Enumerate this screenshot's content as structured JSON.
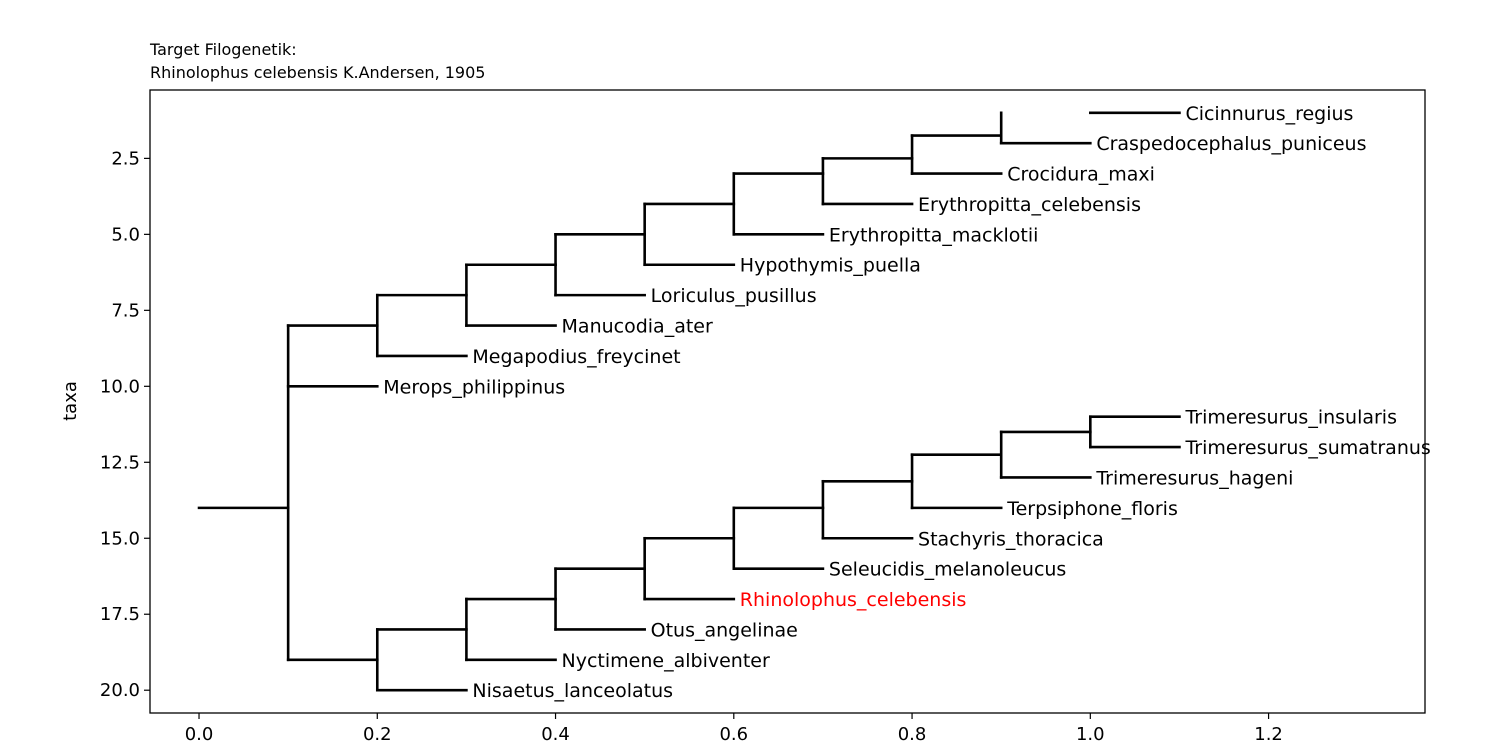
{
  "chart_data": {
    "type": "dendrogram",
    "title_lines": [
      "Target Filogenetik:",
      "Rhinolophus celebensis K.Andersen, 1905"
    ],
    "xlabel": "",
    "ylabel": "taxa",
    "xlim": [
      -0.055,
      1.3755
    ],
    "ylim": [
      20.75,
      0.25
    ],
    "xticks": [
      0.0,
      0.2,
      0.4,
      0.6,
      0.8,
      1.0,
      1.2
    ],
    "xtick_labels": [
      "0.0",
      "0.2",
      "0.4",
      "0.6",
      "0.8",
      "1.0",
      "1.2"
    ],
    "yticks": [
      2.5,
      5.0,
      7.5,
      10.0,
      12.5,
      15.0,
      17.5,
      20.0
    ],
    "ytick_labels": [
      "2.5",
      "5.0",
      "7.5",
      "10.0",
      "12.5",
      "15.0",
      "17.5",
      "20.0"
    ],
    "root": {
      "x": 0.0,
      "y": 14.0
    },
    "highlight_color": "#ff0000",
    "line_color": "#000000",
    "leaves": [
      {
        "name": "Cicinnurus_regius",
        "x": 1.1,
        "y": 1.0,
        "highlight": false
      },
      {
        "name": "Craspedocephalus_puniceus",
        "x": 1.0,
        "y": 2.0,
        "highlight": false
      },
      {
        "name": "Crocidura_maxi",
        "x": 0.9,
        "y": 3.0,
        "highlight": false
      },
      {
        "name": "Erythropitta_celebensis",
        "x": 0.8,
        "y": 4.0,
        "highlight": false
      },
      {
        "name": "Erythropitta_macklotii",
        "x": 0.7,
        "y": 5.0,
        "highlight": false
      },
      {
        "name": "Hypothymis_puella",
        "x": 0.6,
        "y": 6.0,
        "highlight": false
      },
      {
        "name": "Loriculus_pusillus",
        "x": 0.5,
        "y": 7.0,
        "highlight": false
      },
      {
        "name": "Manucodia_ater",
        "x": 0.4,
        "y": 8.0,
        "highlight": false
      },
      {
        "name": "Megapodius_freycinet",
        "x": 0.3,
        "y": 9.0,
        "highlight": false
      },
      {
        "name": "Merops_philippinus",
        "x": 0.2,
        "y": 10.0,
        "highlight": false
      },
      {
        "name": "Trimeresurus_insularis",
        "x": 1.1,
        "y": 11.0,
        "highlight": false
      },
      {
        "name": "Trimeresurus_sumatranus",
        "x": 1.1,
        "y": 12.0,
        "highlight": false
      },
      {
        "name": "Trimeresurus_hageni",
        "x": 1.0,
        "y": 13.0,
        "highlight": false
      },
      {
        "name": "Terpsiphone_floris",
        "x": 0.9,
        "y": 14.0,
        "highlight": false
      },
      {
        "name": "Stachyris_thoracica",
        "x": 0.8,
        "y": 15.0,
        "highlight": false
      },
      {
        "name": "Seleucidis_melanoleucus",
        "x": 0.7,
        "y": 16.0,
        "highlight": false
      },
      {
        "name": "Rhinolophus_celebensis",
        "x": 0.6,
        "y": 17.0,
        "highlight": true
      },
      {
        "name": "Otus_angelinae",
        "x": 0.5,
        "y": 18.0,
        "highlight": false
      },
      {
        "name": "Nyctimene_albiventer",
        "x": 0.4,
        "y": 19.0,
        "highlight": false
      },
      {
        "name": "Nisaetus_lanceolatus",
        "x": 0.3,
        "y": 20.0,
        "highlight": false
      }
    ],
    "internal_nodes": [
      {
        "x": 0.1,
        "y_top": 8.0,
        "y_bottom": 19.0,
        "y_node": 14.0,
        "parent_x": 0.0
      },
      {
        "x": 0.2,
        "y_top": 7.0,
        "y_bottom": 9.0,
        "y_node": 8.0,
        "parent_x": 0.1
      },
      {
        "x": 0.3,
        "y_top": 6.0,
        "y_bottom": 8.0,
        "y_node": 7.0,
        "parent_x": 0.2
      },
      {
        "x": 0.4,
        "y_top": 5.0,
        "y_bottom": 7.0,
        "y_node": 6.0,
        "parent_x": 0.3
      },
      {
        "x": 0.5,
        "y_top": 4.0,
        "y_bottom": 6.0,
        "y_node": 5.0,
        "parent_x": 0.4
      },
      {
        "x": 0.6,
        "y_top": 3.0,
        "y_bottom": 5.0,
        "y_node": 4.0,
        "parent_x": 0.5
      },
      {
        "x": 0.7,
        "y_top": 2.5,
        "y_bottom": 4.0,
        "y_node": 3.0,
        "parent_x": 0.6
      },
      {
        "x": 0.8,
        "y_top": 1.75,
        "y_bottom": 3.0,
        "y_node": 2.5,
        "parent_x": 0.7
      },
      {
        "x": 0.9,
        "y_top": 1.0,
        "y_bottom": 2.0,
        "y_node": 1.75,
        "parent_x": 0.8
      },
      {
        "x": 0.1,
        "y_top": 10.0,
        "y_bottom": 10.0,
        "y_node": 10.0,
        "parent_x": 0.1
      },
      {
        "x": 0.2,
        "y_top": 18.0,
        "y_bottom": 20.0,
        "y_node": 19.0,
        "parent_x": 0.1
      },
      {
        "x": 0.3,
        "y_top": 17.0,
        "y_bottom": 19.0,
        "y_node": 18.0,
        "parent_x": 0.2
      },
      {
        "x": 0.4,
        "y_top": 16.0,
        "y_bottom": 18.0,
        "y_node": 17.0,
        "parent_x": 0.3
      },
      {
        "x": 0.5,
        "y_top": 15.0,
        "y_bottom": 17.0,
        "y_node": 16.0,
        "parent_x": 0.4
      },
      {
        "x": 0.6,
        "y_top": 14.0,
        "y_bottom": 16.0,
        "y_node": 15.0,
        "parent_x": 0.5
      },
      {
        "x": 0.7,
        "y_top": 13.125,
        "y_bottom": 15.0,
        "y_node": 14.0,
        "parent_x": 0.6
      },
      {
        "x": 0.8,
        "y_top": 12.25,
        "y_bottom": 14.0,
        "y_node": 13.125,
        "parent_x": 0.7
      },
      {
        "x": 0.9,
        "y_top": 11.5,
        "y_bottom": 13.0,
        "y_node": 12.25,
        "parent_x": 0.8
      },
      {
        "x": 1.0,
        "y_top": 11.0,
        "y_bottom": 12.0,
        "y_node": 11.5,
        "parent_x": 0.9
      }
    ]
  }
}
